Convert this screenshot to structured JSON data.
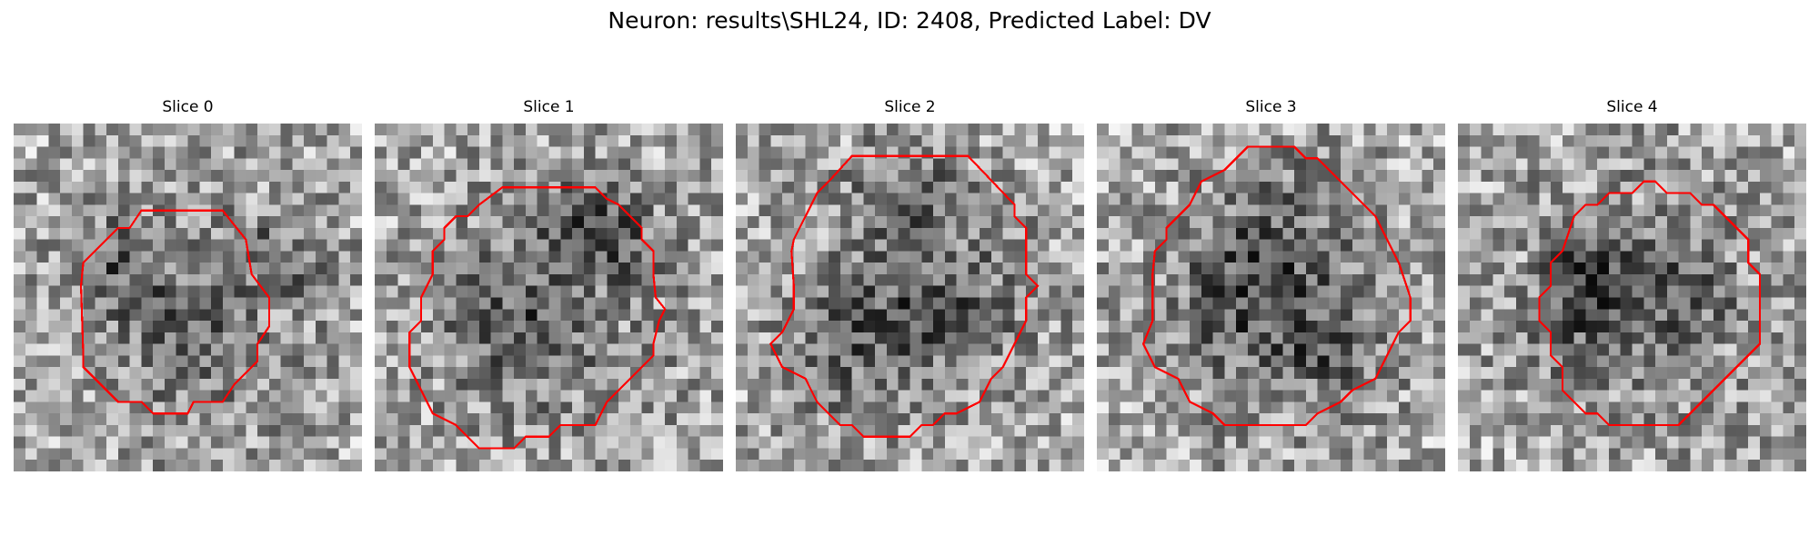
{
  "figure": {
    "title": "Neuron: results\\SHL24, ID: 2408, Predicted Label: DV"
  },
  "panels": [
    {
      "title": "Slice 0",
      "seed": 11
    },
    {
      "title": "Slice 1",
      "seed": 23
    },
    {
      "title": "Slice 2",
      "seed": 37
    },
    {
      "title": "Slice 3",
      "seed": 41
    },
    {
      "title": "Slice 4",
      "seed": 59
    }
  ],
  "image": {
    "grid_size": 30,
    "colormap": "gray",
    "contour_color": "#ff0000"
  }
}
